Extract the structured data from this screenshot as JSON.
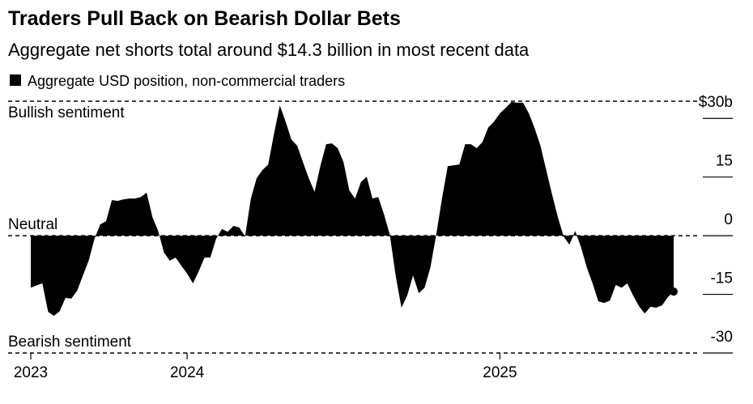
{
  "chart_data": {
    "type": "area",
    "title": "Traders Pull Back on Bearish Dollar Bets",
    "subtitle": "Aggregate net shorts total around $14.3 billion in most recent data",
    "annotations": [
      "Bullish sentiment",
      "Neutral",
      "Bearish sentiment"
    ],
    "categories": [
      "2023",
      null,
      null,
      null,
      null,
      null,
      null,
      null,
      null,
      null,
      null,
      null,
      null,
      null,
      null,
      null,
      null,
      null,
      null,
      null,
      null,
      null,
      null,
      null,
      null,
      null,
      null,
      "2024",
      null,
      null,
      null,
      null,
      null,
      null,
      null,
      null,
      null,
      null,
      null,
      null,
      null,
      null,
      null,
      null,
      null,
      null,
      null,
      null,
      null,
      null,
      null,
      null,
      null,
      null,
      null,
      null,
      null,
      null,
      null,
      null,
      null,
      null,
      null,
      null,
      null,
      null,
      null,
      null,
      null,
      null,
      null,
      null,
      null,
      null,
      null,
      null,
      null,
      null,
      null,
      null,
      null,
      "2025",
      null,
      null,
      null,
      null,
      null,
      null,
      null,
      null,
      null,
      null,
      null,
      null,
      null,
      null,
      null,
      null,
      null,
      null,
      null,
      null,
      null,
      null,
      null,
      null,
      null,
      null,
      null,
      null,
      null,
      null
    ],
    "series": [
      {
        "name": "Aggregate USD position, non-commercial traders",
        "color": "#000000",
        "values": [
          -13.3,
          -12.7,
          -12.2,
          -19.5,
          -20.5,
          -19.3,
          -15.9,
          -16.1,
          -14.1,
          -10.2,
          -6.4,
          -0.8,
          2.9,
          3.7,
          9.1,
          8.9,
          9.3,
          9.5,
          9.5,
          9.9,
          11.0,
          4.8,
          1.2,
          -4.3,
          -6.4,
          -5.6,
          -7.7,
          -9.7,
          -12.2,
          -9.1,
          -5.6,
          -5.6,
          -0.8,
          1.7,
          1.0,
          2.5,
          2.1,
          -0.2,
          9.5,
          14.7,
          16.8,
          18.2,
          26.1,
          33.3,
          29.2,
          24.6,
          23.0,
          18.8,
          14.7,
          11.2,
          17.8,
          23.4,
          23.6,
          22.4,
          18.8,
          11.6,
          9.5,
          13.7,
          15.1,
          9.5,
          9.9,
          5.4,
          0.2,
          -10.2,
          -18.4,
          -15.3,
          -10.2,
          -14.7,
          -13.3,
          -8.1,
          0.2,
          9.5,
          17.8,
          18.0,
          18.2,
          23.4,
          23.4,
          22.4,
          24.0,
          27.7,
          29.2,
          31.3,
          32.7,
          34.2,
          34.0,
          34.0,
          31.3,
          27.5,
          23.0,
          16.8,
          10.6,
          4.8,
          -0.2,
          -2.3,
          1.2,
          -2.9,
          -8.1,
          -12.2,
          -16.8,
          -17.2,
          -16.6,
          -12.6,
          -13.3,
          -12.2,
          -15.3,
          -18.0,
          -19.9,
          -18.2,
          -18.4,
          -17.8,
          -15.7,
          -14.3
        ]
      }
    ],
    "ylim": [
      -30,
      34.4
    ],
    "yticks": [
      {
        "value": 30,
        "label": "$30b"
      },
      15,
      0,
      -15,
      -30
    ]
  }
}
